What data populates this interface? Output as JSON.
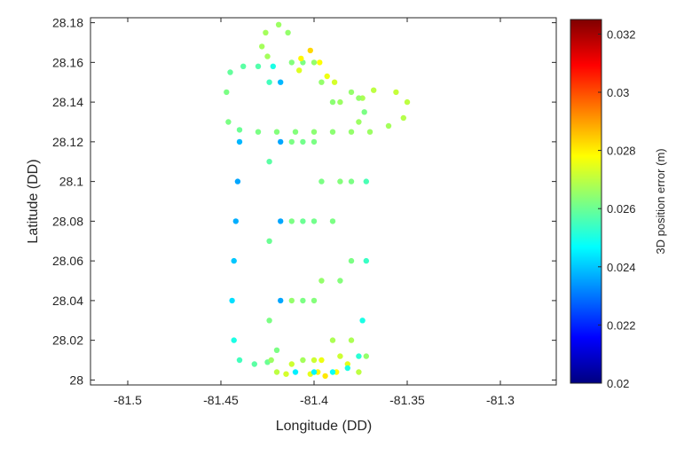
{
  "chart_data": {
    "type": "scatter",
    "title": "",
    "xlabel": "Longitude (DD)",
    "ylabel": "Latitude (DD)",
    "xlim": [
      -81.52,
      -81.27
    ],
    "ylim": [
      27.9975,
      28.1825
    ],
    "xticks": [
      -81.5,
      -81.45,
      -81.4,
      -81.35,
      -81.3
    ],
    "xtick_labels": [
      "-81.5",
      "-81.45",
      "-81.4",
      "-81.35",
      "-81.3"
    ],
    "yticks": [
      28.0,
      28.02,
      28.04,
      28.06,
      28.08,
      28.1,
      28.12,
      28.14,
      28.16,
      28.18
    ],
    "ytick_labels": [
      "28",
      "28.02",
      "28.04",
      "28.06",
      "28.08",
      "28.1",
      "28.12",
      "28.14",
      "28.16",
      "28.18"
    ],
    "grid": false,
    "colormap": "jet",
    "colorbar": {
      "label": "3D position error (m)",
      "range": [
        0.02,
        0.0325
      ],
      "ticks": [
        0.02,
        0.022,
        0.024,
        0.026,
        0.028,
        0.03,
        0.032
      ],
      "tick_labels": [
        "0.02",
        "0.022",
        "0.024",
        "0.026",
        "0.028",
        "0.03",
        "0.032"
      ]
    },
    "series": [
      {
        "points": [
          [
            -81.44,
            28.12,
            0.0238
          ],
          [
            -81.441,
            28.1,
            0.0236
          ],
          [
            -81.442,
            28.08,
            0.0237
          ],
          [
            -81.443,
            28.06,
            0.024
          ],
          [
            -81.444,
            28.04,
            0.0243
          ],
          [
            -81.443,
            28.02,
            0.025
          ],
          [
            -81.44,
            28.01,
            0.0255
          ],
          [
            -81.432,
            28.008,
            0.0258
          ],
          [
            -81.425,
            28.009,
            0.026
          ],
          [
            -81.42,
            28.015,
            0.0262
          ],
          [
            -81.418,
            28.04,
            0.0236
          ],
          [
            -81.418,
            28.08,
            0.0236
          ],
          [
            -81.418,
            28.12,
            0.0236
          ],
          [
            -81.418,
            28.15,
            0.0238
          ],
          [
            -81.422,
            28.158,
            0.025
          ],
          [
            -81.43,
            28.158,
            0.0257
          ],
          [
            -81.438,
            28.158,
            0.0258
          ],
          [
            -81.445,
            28.155,
            0.0259
          ],
          [
            -81.447,
            28.145,
            0.0262
          ],
          [
            -81.446,
            28.13,
            0.0262
          ],
          [
            -81.44,
            28.126,
            0.026
          ],
          [
            -81.43,
            28.125,
            0.0262
          ],
          [
            -81.42,
            28.125,
            0.0263
          ],
          [
            -81.41,
            28.125,
            0.0263
          ],
          [
            -81.4,
            28.125,
            0.0264
          ],
          [
            -81.39,
            28.125,
            0.0264
          ],
          [
            -81.38,
            28.125,
            0.0265
          ],
          [
            -81.37,
            28.125,
            0.0266
          ],
          [
            -81.36,
            28.128,
            0.0267
          ],
          [
            -81.352,
            28.132,
            0.0269
          ],
          [
            -81.35,
            28.14,
            0.027
          ],
          [
            -81.356,
            28.145,
            0.0271
          ],
          [
            -81.368,
            28.146,
            0.027
          ],
          [
            -81.374,
            28.142,
            0.0268
          ],
          [
            -81.376,
            28.13,
            0.0266
          ],
          [
            -81.424,
            28.15,
            0.0255
          ],
          [
            -81.424,
            28.11,
            0.0258
          ],
          [
            -81.424,
            28.07,
            0.026
          ],
          [
            -81.424,
            28.03,
            0.0262
          ],
          [
            -81.423,
            28.01,
            0.0266
          ],
          [
            -81.42,
            28.004,
            0.027
          ],
          [
            -81.415,
            28.003,
            0.0273
          ],
          [
            -81.412,
            28.008,
            0.0272
          ],
          [
            -81.412,
            28.04,
            0.0265
          ],
          [
            -81.412,
            28.08,
            0.0262
          ],
          [
            -81.412,
            28.12,
            0.0262
          ],
          [
            -81.412,
            28.16,
            0.0263
          ],
          [
            -81.414,
            28.175,
            0.0265
          ],
          [
            -81.419,
            28.179,
            0.0266
          ],
          [
            -81.426,
            28.175,
            0.0267
          ],
          [
            -81.428,
            28.168,
            0.0267
          ],
          [
            -81.425,
            28.163,
            0.0267
          ],
          [
            -81.406,
            28.16,
            0.0262
          ],
          [
            -81.406,
            28.12,
            0.0261
          ],
          [
            -81.406,
            28.08,
            0.026
          ],
          [
            -81.406,
            28.04,
            0.0262
          ],
          [
            -81.406,
            28.01,
            0.0267
          ],
          [
            -81.402,
            28.003,
            0.0275
          ],
          [
            -81.398,
            28.004,
            0.0279
          ],
          [
            -81.396,
            28.01,
            0.0276
          ],
          [
            -81.396,
            28.05,
            0.0265
          ],
          [
            -81.396,
            28.1,
            0.0262
          ],
          [
            -81.396,
            28.15,
            0.0265
          ],
          [
            -81.397,
            28.16,
            0.0278
          ],
          [
            -81.402,
            28.166,
            0.0283
          ],
          [
            -81.407,
            28.162,
            0.0279
          ],
          [
            -81.408,
            28.156,
            0.0274
          ],
          [
            -81.4,
            28.16,
            0.0265
          ],
          [
            -81.4,
            28.12,
            0.0262
          ],
          [
            -81.4,
            28.08,
            0.0261
          ],
          [
            -81.4,
            28.04,
            0.0263
          ],
          [
            -81.4,
            28.01,
            0.0272
          ],
          [
            -81.394,
            28.002,
            0.0281
          ],
          [
            -81.388,
            28.004,
            0.0278
          ],
          [
            -81.386,
            28.012,
            0.0272
          ],
          [
            -81.386,
            28.05,
            0.0263
          ],
          [
            -81.386,
            28.1,
            0.0263
          ],
          [
            -81.386,
            28.14,
            0.0266
          ],
          [
            -81.389,
            28.15,
            0.0273
          ],
          [
            -81.393,
            28.153,
            0.0276
          ],
          [
            -81.39,
            28.02,
            0.0268
          ],
          [
            -81.39,
            28.08,
            0.0262
          ],
          [
            -81.39,
            28.14,
            0.0264
          ],
          [
            -81.38,
            28.145,
            0.0265
          ],
          [
            -81.38,
            28.1,
            0.0262
          ],
          [
            -81.38,
            28.06,
            0.0262
          ],
          [
            -81.38,
            28.02,
            0.0268
          ],
          [
            -81.382,
            28.008,
            0.0275
          ],
          [
            -81.376,
            28.004,
            0.027
          ],
          [
            -81.372,
            28.012,
            0.0265
          ],
          [
            -81.372,
            28.06,
            0.0254
          ],
          [
            -81.372,
            28.1,
            0.0256
          ],
          [
            -81.373,
            28.135,
            0.0262
          ],
          [
            -81.376,
            28.142,
            0.0265
          ],
          [
            -81.41,
            28.004,
            0.0245
          ],
          [
            -81.4,
            28.004,
            0.0246
          ],
          [
            -81.39,
            28.004,
            0.0248
          ],
          [
            -81.382,
            28.006,
            0.025
          ],
          [
            -81.376,
            28.012,
            0.0252
          ],
          [
            -81.374,
            28.03,
            0.025
          ]
        ]
      }
    ]
  }
}
